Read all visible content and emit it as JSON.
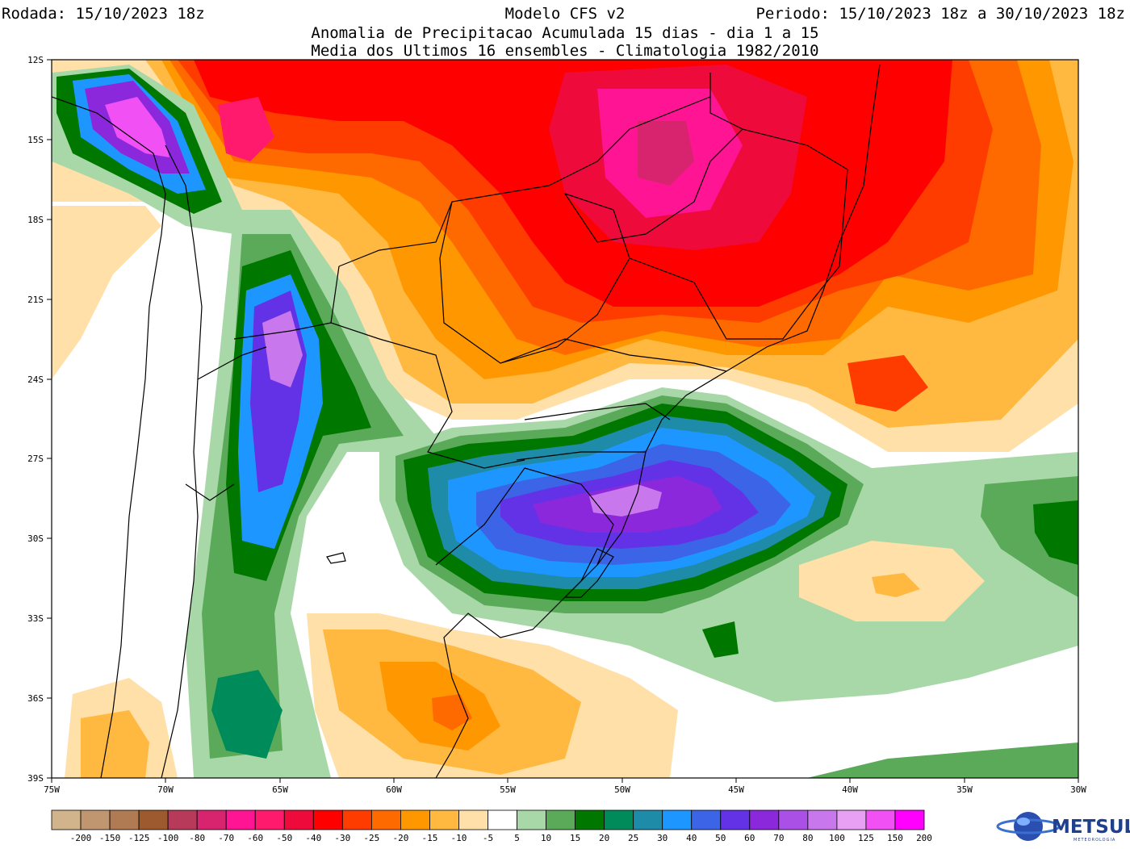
{
  "header": {
    "run_label": "Rodada: 15/10/2023 18z",
    "model_label": "Modelo CFS v2",
    "period_label": "Periodo: 15/10/2023 18z a 30/10/2023 18z",
    "subtitle1": "Anomalia de Precipitacao Acumulada 15 dias - dia 1 a 15",
    "subtitle2": "Media dos Ultimos 16 ensembles - Climatologia 1982/2010"
  },
  "map": {
    "lon_range": [
      -75,
      -30
    ],
    "lat_range": [
      -39,
      -12
    ],
    "lon_ticks": [
      "75W",
      "70W",
      "65W",
      "60W",
      "55W",
      "50W",
      "45W",
      "40W",
      "35W",
      "30W"
    ],
    "lat_ticks": [
      "12S",
      "15S",
      "18S",
      "21S",
      "24S",
      "27S",
      "30S",
      "33S",
      "36S",
      "39S"
    ]
  },
  "colorbar": {
    "labels": [
      "-200",
      "-150",
      "-125",
      "-100",
      "-80",
      "-70",
      "-60",
      "-50",
      "-40",
      "-30",
      "-25",
      "-20",
      "-15",
      "-10",
      "-5",
      "5",
      "10",
      "15",
      "20",
      "25",
      "30",
      "40",
      "50",
      "60",
      "70",
      "80",
      "100",
      "125",
      "150",
      "200"
    ],
    "colors": [
      "#d2b48c",
      "#c09670",
      "#b07a52",
      "#9c5a2e",
      "#b83a5a",
      "#d8246e",
      "#ff1493",
      "#ff1a6e",
      "#ee0a3a",
      "#ff0000",
      "#ff3c00",
      "#ff6a00",
      "#ff9800",
      "#ffb840",
      "#ffe0a8",
      "#ffffff",
      "#a8d8a8",
      "#5aaa5a",
      "#007800",
      "#008c5a",
      "#1e8ca8",
      "#1e96ff",
      "#3c64e6",
      "#6432e6",
      "#8c28dc",
      "#aa50e6",
      "#c878ec",
      "#e8a0f4",
      "#f050f4",
      "#ff00ff"
    ]
  },
  "logo": {
    "name": "METSUL",
    "sub": "METEOROLOGIA"
  }
}
